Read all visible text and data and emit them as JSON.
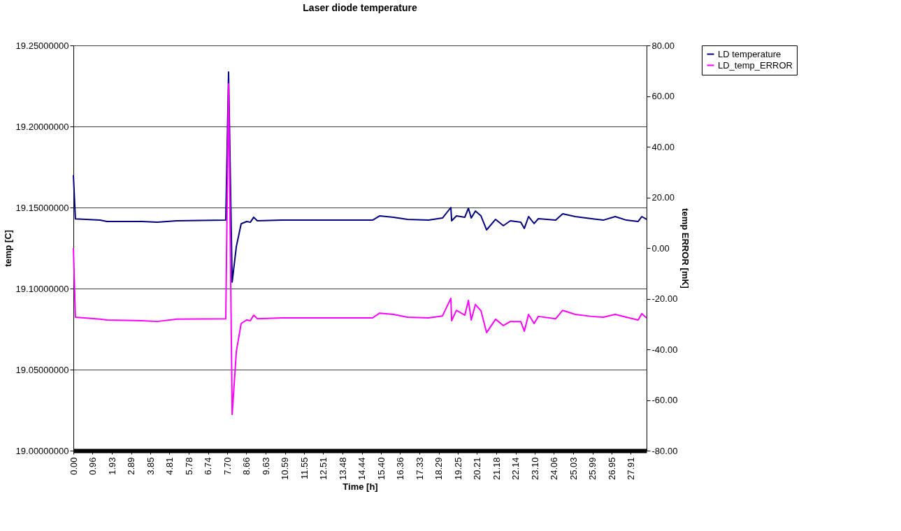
{
  "chart_data": {
    "type": "line",
    "title": "Laser diode temperature",
    "xlabel": "Time [h]",
    "ylabel": "temp [C]",
    "y2label": "temp ERROR [mK]",
    "x": [
      0,
      0.1,
      1.33,
      1.68,
      3.43,
      4.2,
      5.18,
      7.63,
      7.77,
      7.95,
      8.16,
      8.4,
      8.68,
      8.86,
      9.03,
      9.21,
      10.43,
      14.98,
      15.33,
      16.03,
      16.73,
      17.78,
      18.48,
      18.9,
      18.94,
      19.18,
      19.6,
      19.78,
      19.92,
      20.13,
      20.41,
      20.69,
      21.14,
      21.53,
      21.88,
      22.4,
      22.58,
      22.79,
      23.07,
      23.28,
      24.15,
      24.5,
      25.13,
      25.94,
      26.53,
      27.13,
      27.69,
      28.28,
      28.46,
      28.7
    ],
    "series": [
      {
        "name": "LD temperature",
        "color": "#000080",
        "values": [
          19.17,
          19.143,
          19.1422,
          19.1414,
          19.1414,
          19.1409,
          19.1418,
          19.1422,
          19.2336,
          19.104,
          19.126,
          19.14,
          19.1414,
          19.1409,
          19.144,
          19.1418,
          19.1422,
          19.1422,
          19.1448,
          19.144,
          19.1427,
          19.1422,
          19.1435,
          19.15,
          19.1418,
          19.1448,
          19.144,
          19.1496,
          19.1435,
          19.1478,
          19.1448,
          19.1362,
          19.1427,
          19.1388,
          19.1418,
          19.1409,
          19.1371,
          19.1444,
          19.1401,
          19.1431,
          19.1422,
          19.1461,
          19.1444,
          19.1431,
          19.1422,
          19.1444,
          19.1422,
          19.1414,
          19.1444,
          19.1427
        ]
      },
      {
        "name": "LD_temp_ERROR",
        "color": "#ff00ff",
        "axis": "y2",
        "values": [
          0.0,
          -27.3,
          -28.1,
          -28.4,
          -28.7,
          -29.0,
          -28.1,
          -27.9,
          64.8,
          -65.7,
          -40.8,
          -29.8,
          -28.4,
          -28.7,
          -26.5,
          -27.9,
          -27.6,
          -27.6,
          -25.7,
          -26.2,
          -27.3,
          -27.6,
          -26.8,
          -19.9,
          -28.7,
          -24.6,
          -26.5,
          -20.7,
          -28.4,
          -22.3,
          -24.8,
          -33.4,
          -28.1,
          -30.6,
          -29.0,
          -29.0,
          -32.8,
          -26.2,
          -29.8,
          -27.0,
          -27.9,
          -24.6,
          -26.2,
          -27.0,
          -27.3,
          -26.2,
          -27.3,
          -28.4,
          -25.9,
          -27.6
        ]
      }
    ],
    "xlim": [
      0,
      28.7
    ],
    "xticks": [
      {
        "value": 0,
        "label": "0.00"
      },
      {
        "value": 0.96,
        "label": "0.96"
      },
      {
        "value": 1.93,
        "label": "1.93"
      },
      {
        "value": 2.89,
        "label": "2.89"
      },
      {
        "value": 3.85,
        "label": "3.85"
      },
      {
        "value": 4.81,
        "label": "4.81"
      },
      {
        "value": 5.78,
        "label": "5.78"
      },
      {
        "value": 6.74,
        "label": "6.74"
      },
      {
        "value": 7.7,
        "label": "7.70"
      },
      {
        "value": 8.66,
        "label": "8.66"
      },
      {
        "value": 9.63,
        "label": "9.63"
      },
      {
        "value": 10.59,
        "label": "10.59"
      },
      {
        "value": 11.55,
        "label": "11.55"
      },
      {
        "value": 12.51,
        "label": "12.51"
      },
      {
        "value": 13.48,
        "label": "13.48"
      },
      {
        "value": 14.44,
        "label": "14.44"
      },
      {
        "value": 15.4,
        "label": "15.40"
      },
      {
        "value": 16.36,
        "label": "16.36"
      },
      {
        "value": 17.33,
        "label": "17.33"
      },
      {
        "value": 18.29,
        "label": "18.29"
      },
      {
        "value": 19.25,
        "label": "19.25"
      },
      {
        "value": 20.21,
        "label": "20.21"
      },
      {
        "value": 21.18,
        "label": "21.18"
      },
      {
        "value": 22.14,
        "label": "22.14"
      },
      {
        "value": 23.1,
        "label": "23.10"
      },
      {
        "value": 24.06,
        "label": "24.06"
      },
      {
        "value": 25.03,
        "label": "25.03"
      },
      {
        "value": 25.99,
        "label": "25.99"
      },
      {
        "value": 26.95,
        "label": "26.95"
      },
      {
        "value": 27.91,
        "label": "27.91"
      }
    ],
    "ylim": [
      19.0,
      19.25
    ],
    "yticks": [
      {
        "value": 19.0,
        "label": "19.00000000"
      },
      {
        "value": 19.05,
        "label": "19.05000000"
      },
      {
        "value": 19.1,
        "label": "19.10000000"
      },
      {
        "value": 19.15,
        "label": "19.15000000"
      },
      {
        "value": 19.2,
        "label": "19.20000000"
      },
      {
        "value": 19.25,
        "label": "19.25000000"
      }
    ],
    "y2lim": [
      -80,
      80
    ],
    "y2ticks": [
      {
        "value": -80,
        "label": "-80.00"
      },
      {
        "value": -60,
        "label": "-60.00"
      },
      {
        "value": -40,
        "label": "-40.00"
      },
      {
        "value": -20,
        "label": "-20.00"
      },
      {
        "value": 0,
        "label": "0.00"
      },
      {
        "value": 20,
        "label": "20.00"
      },
      {
        "value": 40,
        "label": "40.00"
      },
      {
        "value": 60,
        "label": "60.00"
      },
      {
        "value": 80,
        "label": "80.00"
      }
    ],
    "grid": "y",
    "legend": "right",
    "marker": "none",
    "line_style": "solid"
  }
}
